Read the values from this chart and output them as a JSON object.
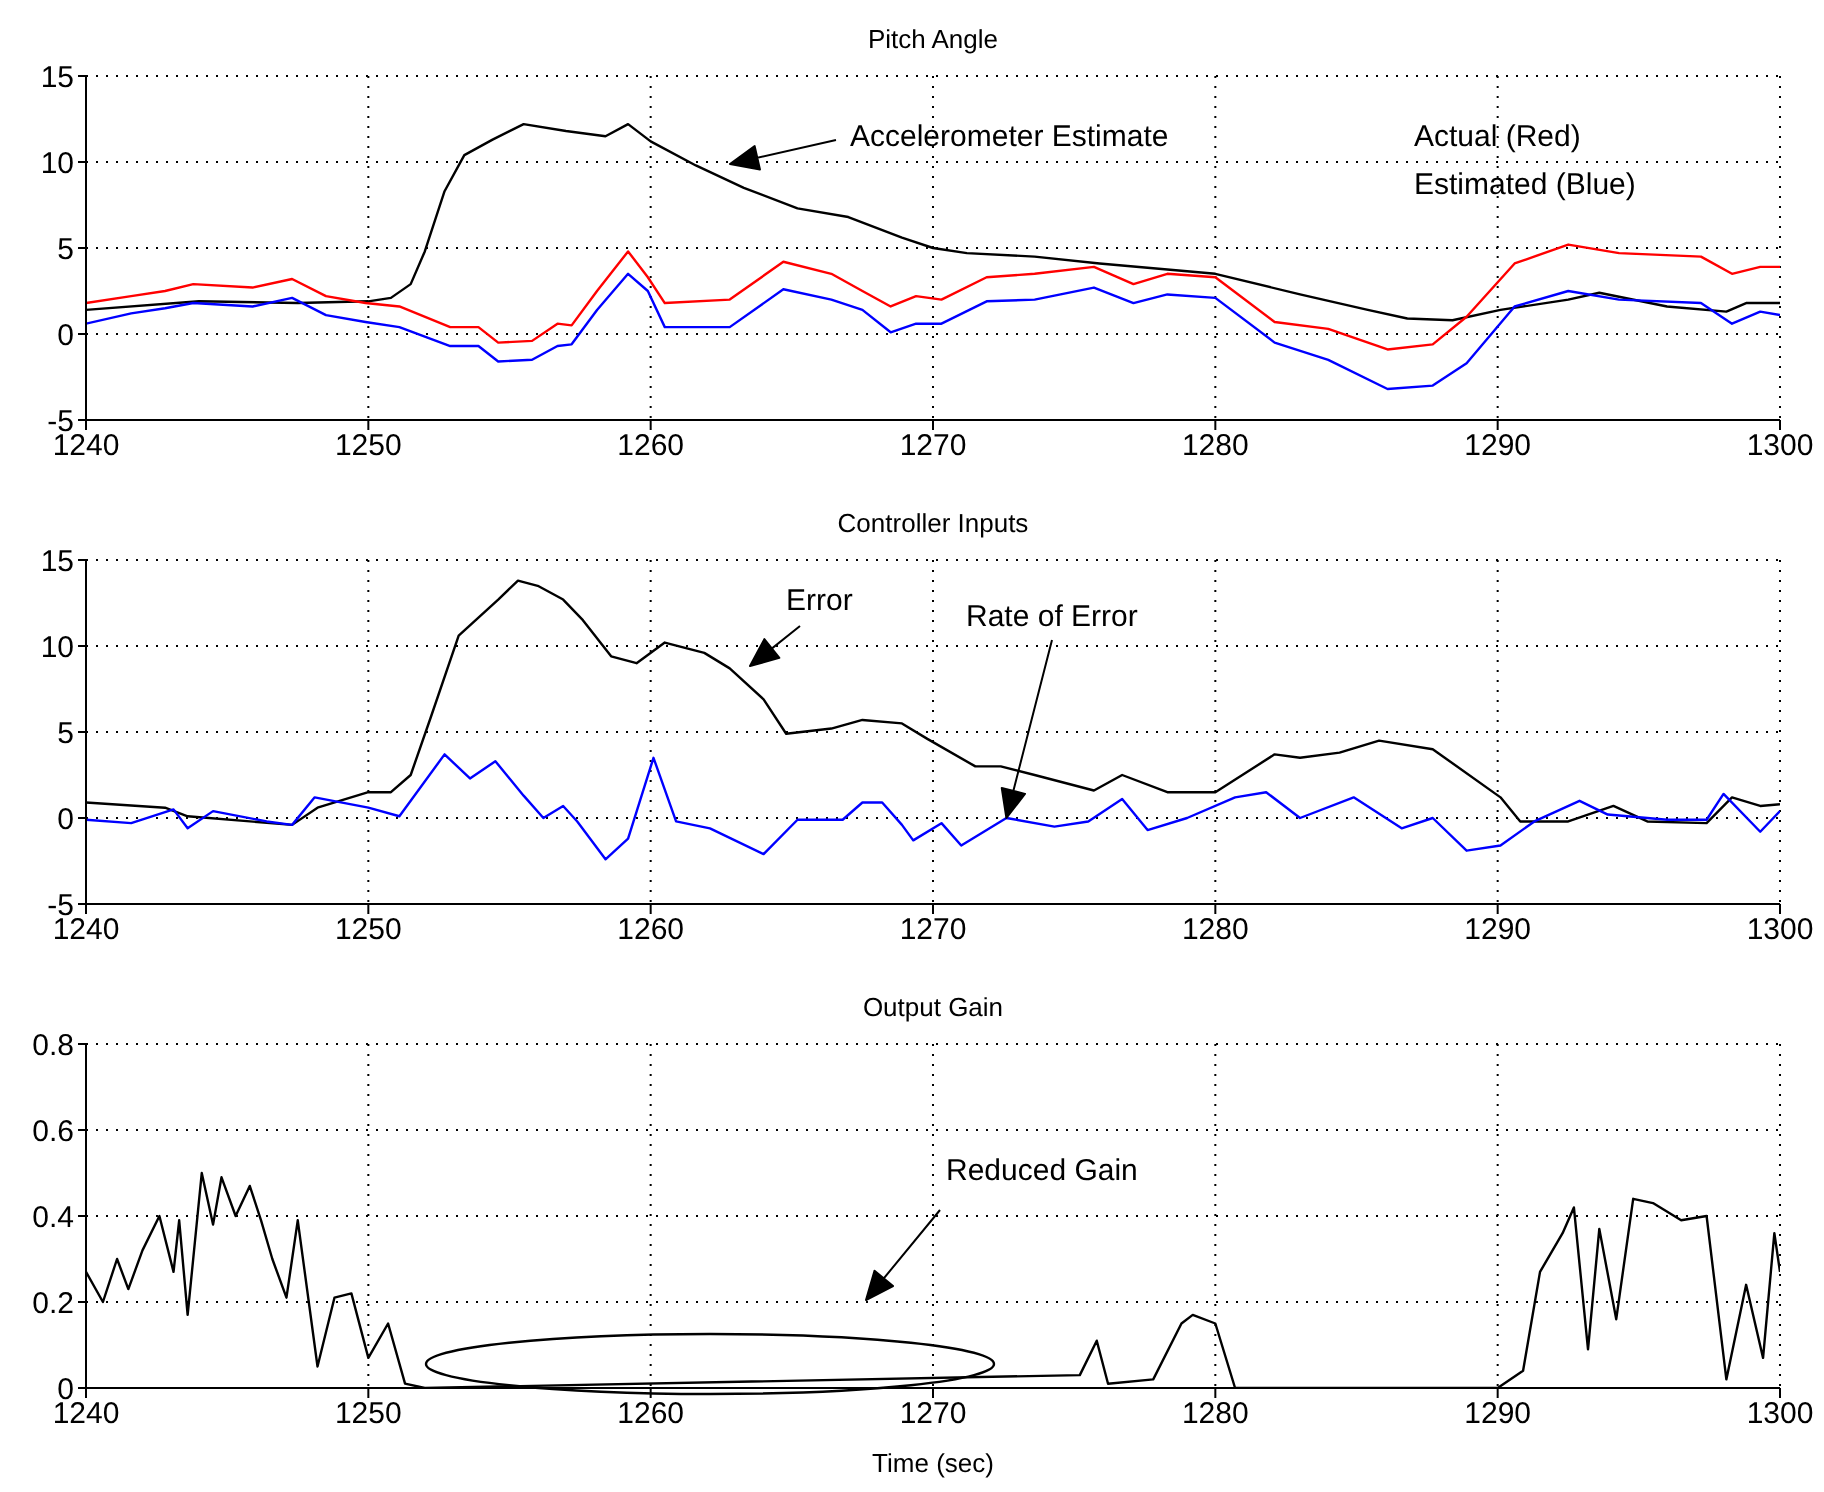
{
  "chart_data": [
    {
      "type": "line",
      "title": "Pitch Angle",
      "xlim": [
        1240,
        1300
      ],
      "xticks": [
        1240,
        1250,
        1260,
        1270,
        1280,
        1290,
        1300
      ],
      "ylim": [
        -5,
        15
      ],
      "yticks": [
        -5,
        0,
        5,
        10,
        15
      ],
      "grid": true,
      "marker": "none",
      "line_style": "solid",
      "series": [
        {
          "color": "#000000",
          "x": [
            1240,
            1244,
            1247.5,
            1250,
            1250.8,
            1251.5,
            1252,
            1252.7,
            1253.4,
            1254.4,
            1255.5,
            1257,
            1258.4,
            1259.2,
            1260,
            1261.6,
            1263.3,
            1265.2,
            1267,
            1268.9,
            1270,
            1271.2,
            1273.6,
            1275.9,
            1280,
            1283,
            1285.4,
            1286.8,
            1288.4,
            1290.1,
            1292.5,
            1293.6,
            1296,
            1298.1,
            1298.8,
            1300
          ],
          "values": [
            1.4,
            1.9,
            1.8,
            1.9,
            2.1,
            2.9,
            4.8,
            8.3,
            10.4,
            11.3,
            12.2,
            11.8,
            11.5,
            12.2,
            11.2,
            9.8,
            8.5,
            7.3,
            6.8,
            5.6,
            5.0,
            4.7,
            4.5,
            4.1,
            3.5,
            2.3,
            1.4,
            0.9,
            0.8,
            1.4,
            2.0,
            2.4,
            1.6,
            1.3,
            1.8,
            1.8
          ]
        },
        {
          "color": "#ff0000",
          "x": [
            1240,
            1241.6,
            1242.8,
            1243.8,
            1245.9,
            1247.3,
            1248.5,
            1249.9,
            1251.1,
            1252.9,
            1253.9,
            1254.6,
            1255.8,
            1256.7,
            1257.2,
            1258.1,
            1259.2,
            1259.9,
            1260.5,
            1262.8,
            1264.7,
            1266.4,
            1267.5,
            1268.5,
            1269.4,
            1270.3,
            1271.9,
            1273.6,
            1275.7,
            1277.1,
            1278.3,
            1280,
            1282.1,
            1284,
            1286.1,
            1287.7,
            1288.9,
            1290.6,
            1292.5,
            1294.3,
            1297.2,
            1298.3,
            1299.3,
            1300
          ],
          "values": [
            1.8,
            2.2,
            2.5,
            2.9,
            2.7,
            3.2,
            2.2,
            1.8,
            1.6,
            0.4,
            0.4,
            -0.5,
            -0.4,
            0.6,
            0.5,
            2.5,
            4.8,
            3.3,
            1.8,
            2.0,
            4.2,
            3.5,
            2.5,
            1.6,
            2.2,
            2.0,
            3.3,
            3.5,
            3.9,
            2.9,
            3.5,
            3.3,
            0.7,
            0.3,
            -0.9,
            -0.6,
            1.0,
            4.1,
            5.2,
            4.7,
            4.5,
            3.5,
            3.9,
            3.9
          ]
        },
        {
          "color": "#0000ff",
          "x": [
            1240,
            1241.6,
            1242.8,
            1243.8,
            1245.9,
            1247.3,
            1248.5,
            1249.9,
            1251.1,
            1252.9,
            1253.9,
            1254.6,
            1255.8,
            1256.7,
            1257.2,
            1258.1,
            1259.2,
            1259.9,
            1260.5,
            1262.8,
            1264.7,
            1266.4,
            1267.5,
            1268.5,
            1269.4,
            1270.3,
            1271.9,
            1273.6,
            1275.7,
            1277.1,
            1278.3,
            1280,
            1282.1,
            1284,
            1286.1,
            1287.7,
            1288.9,
            1290.6,
            1292.5,
            1294.3,
            1297.2,
            1298.3,
            1299.3,
            1300
          ],
          "values": [
            0.6,
            1.2,
            1.5,
            1.8,
            1.6,
            2.1,
            1.1,
            0.7,
            0.4,
            -0.7,
            -0.7,
            -1.6,
            -1.5,
            -0.7,
            -0.6,
            1.4,
            3.5,
            2.5,
            0.4,
            0.4,
            2.6,
            2.0,
            1.4,
            0.1,
            0.6,
            0.6,
            1.9,
            2.0,
            2.7,
            1.8,
            2.3,
            2.1,
            -0.5,
            -1.5,
            -3.2,
            -3.0,
            -1.7,
            1.6,
            2.5,
            2.0,
            1.8,
            0.6,
            1.3,
            1.1
          ]
        }
      ],
      "annotations": [
        "Accelerometer Estimate",
        "Actual (Red)",
        "Estimated (Blue)"
      ]
    },
    {
      "type": "line",
      "title": "Controller Inputs",
      "xlim": [
        1240,
        1300
      ],
      "xticks": [
        1240,
        1250,
        1260,
        1270,
        1280,
        1290,
        1300
      ],
      "ylim": [
        -5,
        15
      ],
      "yticks": [
        -5,
        0,
        5,
        10,
        15
      ],
      "grid": true,
      "marker": "none",
      "line_style": "solid",
      "series": [
        {
          "color": "#000000",
          "x": [
            1240,
            1242.8,
            1243.6,
            1247.3,
            1248.2,
            1250,
            1250.8,
            1251.5,
            1252.2,
            1253.2,
            1254.6,
            1255.3,
            1256,
            1256.9,
            1257.6,
            1258.6,
            1259.5,
            1260.5,
            1261.9,
            1262.8,
            1264,
            1264.8,
            1266.4,
            1267.5,
            1268.9,
            1269.8,
            1271.5,
            1272.4,
            1273.6,
            1275.7,
            1276.7,
            1278.3,
            1280,
            1282.1,
            1283,
            1284.4,
            1285.8,
            1287.7,
            1290.1,
            1290.8,
            1292.5,
            1294.1,
            1295.3,
            1297.4,
            1298.3,
            1299.3,
            1300
          ],
          "values": [
            0.9,
            0.6,
            0.1,
            -0.4,
            0.6,
            1.5,
            1.5,
            2.5,
            5.8,
            10.6,
            12.7,
            13.8,
            13.5,
            12.7,
            11.5,
            9.4,
            9.0,
            10.2,
            9.6,
            8.7,
            6.9,
            4.9,
            5.2,
            5.7,
            5.5,
            4.6,
            3.0,
            3.0,
            2.5,
            1.6,
            2.5,
            1.5,
            1.5,
            3.7,
            3.5,
            3.8,
            4.5,
            4.0,
            1.2,
            -0.2,
            -0.2,
            0.7,
            -0.2,
            -0.3,
            1.2,
            0.7,
            0.8
          ]
        },
        {
          "color": "#0000ff",
          "x": [
            1240,
            1241.6,
            1243.1,
            1243.6,
            1244.5,
            1246.4,
            1247.3,
            1248.1,
            1250,
            1251.1,
            1252.7,
            1253.6,
            1254.5,
            1255.5,
            1256.2,
            1256.9,
            1257.4,
            1258.4,
            1259.2,
            1260.1,
            1260.9,
            1262.1,
            1264,
            1265.2,
            1266.8,
            1267.5,
            1268.2,
            1268.9,
            1269.3,
            1270.3,
            1271,
            1272.6,
            1274.3,
            1275.5,
            1276.7,
            1277.6,
            1279,
            1280.7,
            1281.8,
            1283,
            1284.9,
            1286.6,
            1287.7,
            1288.9,
            1290.1,
            1291.3,
            1292.9,
            1293.9,
            1296,
            1297.4,
            1298,
            1299.3,
            1300
          ],
          "values": [
            -0.1,
            -0.3,
            0.5,
            -0.6,
            0.4,
            -0.2,
            -0.4,
            1.2,
            0.6,
            0.1,
            3.7,
            2.3,
            3.3,
            1.3,
            0,
            0.7,
            -0.2,
            -2.4,
            -1.2,
            3.5,
            -0.2,
            -0.6,
            -2.1,
            -0.1,
            -0.1,
            0.9,
            0.9,
            -0.4,
            -1.3,
            -0.3,
            -1.6,
            0,
            -0.5,
            -0.2,
            1.1,
            -0.7,
            0,
            1.2,
            1.5,
            0,
            1.2,
            -0.6,
            0,
            -1.9,
            -1.6,
            -0.2,
            1.0,
            0.2,
            -0.1,
            -0.1,
            1.4,
            -0.8,
            0.4
          ]
        }
      ],
      "annotations": [
        "Error",
        {
          "text": "Rate of Error",
          "x": 1272.6,
          "y": 0
        }
      ]
    },
    {
      "type": "line",
      "title": "Output Gain",
      "xlabel": "Time (sec)",
      "xlim": [
        1240,
        1300
      ],
      "xticks": [
        1240,
        1250,
        1260,
        1270,
        1280,
        1290,
        1300
      ],
      "ylim": [
        0,
        0.8
      ],
      "yticks": [
        0,
        0.2,
        0.4,
        0.6,
        0.8
      ],
      "grid": true,
      "marker": "none",
      "line_style": "solid",
      "series": [
        {
          "color": "#000000",
          "x": [
            1240,
            1240.6,
            1241.1,
            1241.5,
            1242,
            1242.6,
            1243.1,
            1243.3,
            1243.6,
            1244.1,
            1244.5,
            1244.8,
            1245.3,
            1245.8,
            1246.2,
            1246.6,
            1247.1,
            1247.5,
            1248.2,
            1248.8,
            1249.4,
            1250,
            1250.7,
            1251.3,
            1252,
            1275.2,
            1275.8,
            1276.2,
            1277.8,
            1278.8,
            1279.2,
            1280,
            1280.7,
            1290,
            1290.9,
            1291.5,
            1292.3,
            1292.7,
            1293.2,
            1293.6,
            1294.2,
            1294.8,
            1295.5,
            1296.5,
            1297.4,
            1298.1,
            1298.8,
            1299.4,
            1299.8,
            1300
          ],
          "values": [
            0.27,
            0.2,
            0.3,
            0.23,
            0.32,
            0.4,
            0.27,
            0.39,
            0.17,
            0.5,
            0.38,
            0.49,
            0.4,
            0.47,
            0.39,
            0.3,
            0.21,
            0.39,
            0.05,
            0.21,
            0.22,
            0.07,
            0.15,
            0.01,
            0,
            0.03,
            0.11,
            0.01,
            0.02,
            0.15,
            0.17,
            0.15,
            0,
            0,
            0.04,
            0.27,
            0.36,
            0.42,
            0.09,
            0.37,
            0.16,
            0.44,
            0.43,
            0.39,
            0.4,
            0.02,
            0.24,
            0.07,
            0.36,
            0.27
          ]
        }
      ],
      "annotations": [
        "Reduced Gain"
      ]
    }
  ]
}
